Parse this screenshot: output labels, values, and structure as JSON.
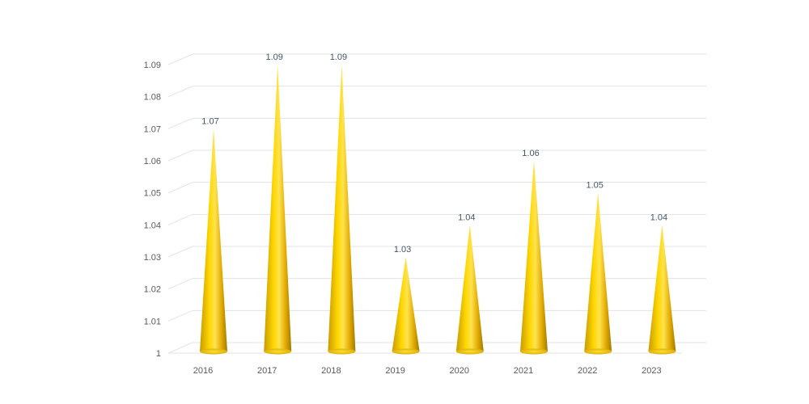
{
  "chart_data": {
    "type": "bar",
    "bar_shape": "3d-cone",
    "categories": [
      "2016",
      "2017",
      "2018",
      "2019",
      "2020",
      "2021",
      "2022",
      "2023"
    ],
    "series": [
      {
        "values": [
          1.07,
          1.09,
          1.09,
          1.03,
          1.04,
          1.06,
          1.05,
          1.04
        ]
      }
    ],
    "data_labels": [
      "1.07",
      "1.09",
      "1.09",
      "1.03",
      "1.04",
      "1.06",
      "1.05",
      "1.04"
    ],
    "y_ticks": [
      "1",
      "1.01",
      "1.02",
      "1.03",
      "1.04",
      "1.05",
      "1.06",
      "1.07",
      "1.08",
      "1.09"
    ],
    "ylim": [
      1,
      1.09
    ],
    "grid": true,
    "legend": "none",
    "title": "",
    "xlabel": "",
    "ylabel": "",
    "colors": {
      "cone_light": "#ffd700",
      "cone_mid": "#f2b800",
      "cone_dark": "#9c7a00",
      "grid": "#e3e3e3"
    }
  }
}
